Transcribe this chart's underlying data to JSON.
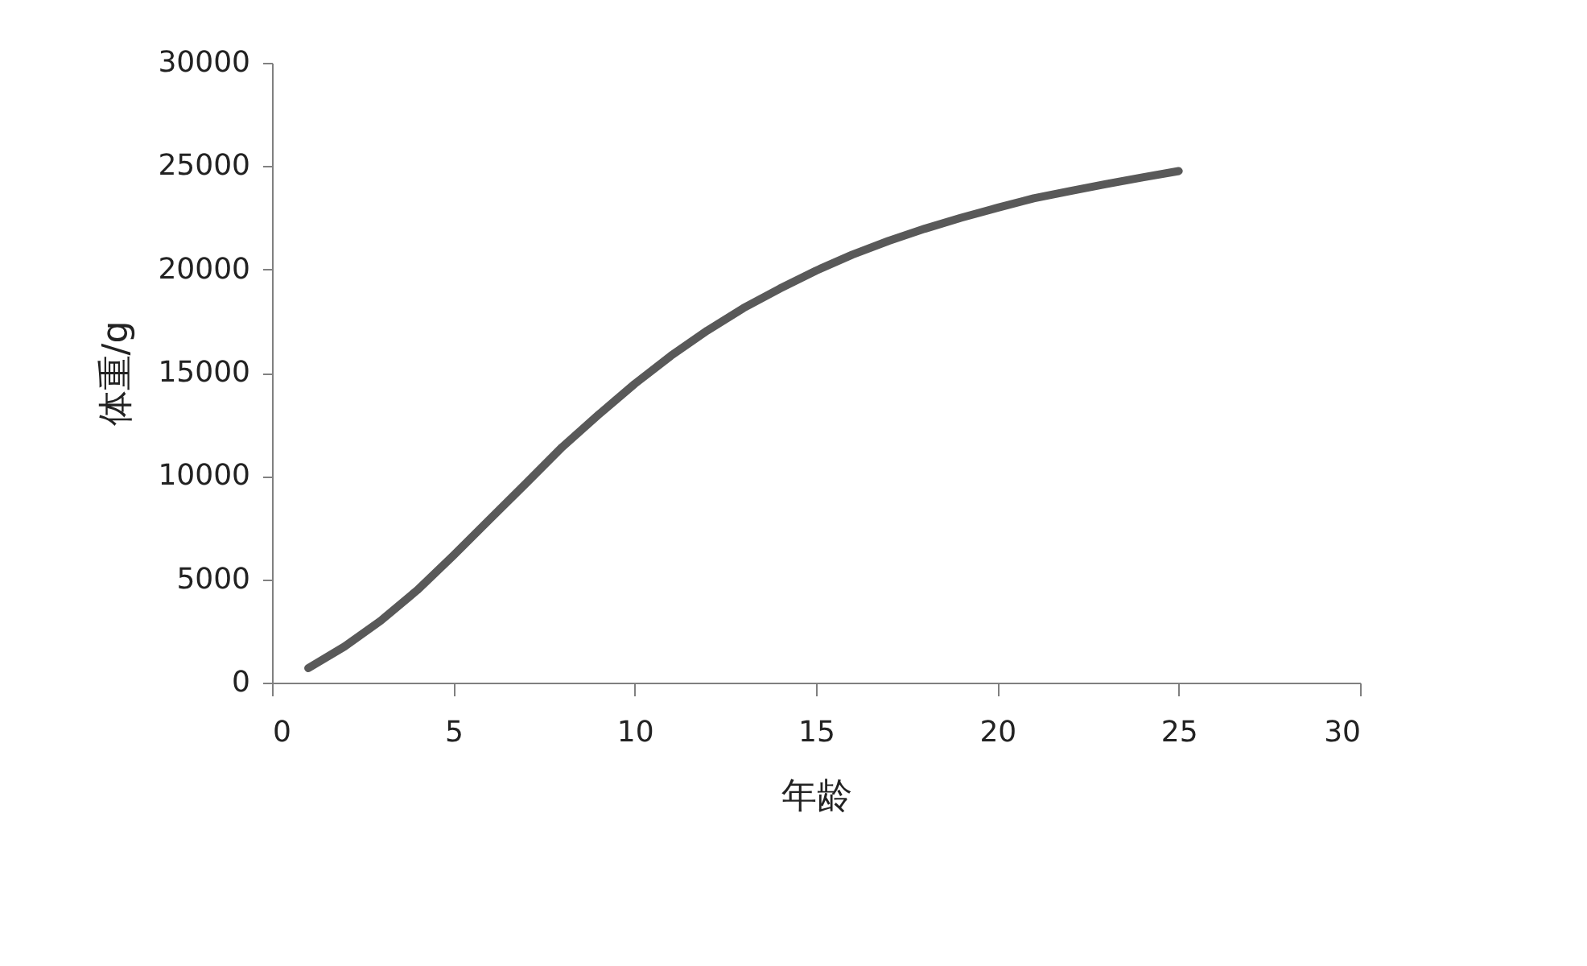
{
  "chart_data": {
    "type": "line",
    "xlabel": "年龄",
    "ylabel": "体重/g",
    "x": [
      1,
      2,
      3,
      4,
      5,
      6,
      7,
      8,
      9,
      10,
      11,
      12,
      13,
      14,
      15,
      16,
      17,
      18,
      19,
      20,
      21,
      22,
      23,
      24,
      25
    ],
    "series": [
      {
        "color": "#595959",
        "values": [
          700,
          1750,
          3000,
          4470,
          6150,
          7900,
          9640,
          11400,
          12960,
          14460,
          15820,
          17040,
          18130,
          19070,
          19940,
          20710,
          21380,
          21970,
          22500,
          22980,
          23440,
          23790,
          24130,
          24450,
          24760
        ]
      }
    ],
    "xlim": [
      0,
      30
    ],
    "xticks": [
      0,
      5,
      10,
      15,
      20,
      25,
      30
    ],
    "ylim": [
      0,
      30000
    ],
    "yticks": [
      0,
      5000,
      10000,
      15000,
      20000,
      25000,
      30000
    ],
    "grid": false,
    "marker": "none",
    "line_style": "solid"
  }
}
